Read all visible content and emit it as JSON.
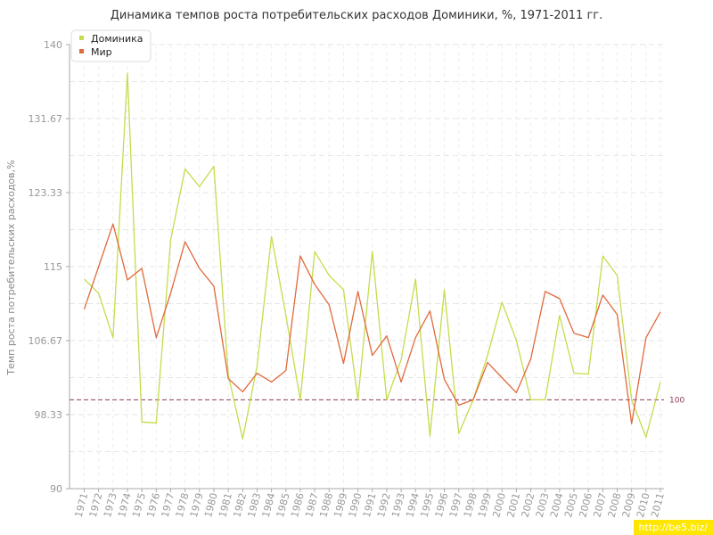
{
  "chart_data": {
    "type": "line",
    "title": "Динамика темпов роста потребительских расходов Доминики, %, 1971-2011 гг.",
    "ylabel": "Темп роста потребительских расходов,%",
    "xlabel": "",
    "ylim": [
      90,
      140
    ],
    "yticks": [
      "90",
      "98.33",
      "106.67",
      "115",
      "123.33",
      "131.67",
      "140"
    ],
    "x": [
      "1971",
      "1972",
      "1973",
      "1974",
      "1975",
      "1976",
      "1977",
      "1978",
      "1979",
      "1980",
      "1981",
      "1982",
      "1983",
      "1984",
      "1985",
      "1986",
      "1987",
      "1988",
      "1989",
      "1990",
      "1991",
      "1992",
      "1993",
      "1994",
      "1995",
      "1996",
      "1997",
      "1998",
      "1999",
      "2000",
      "2001",
      "2002",
      "2003",
      "2004",
      "2005",
      "2006",
      "2007",
      "2008",
      "2009",
      "2010",
      "2011"
    ],
    "grid": true,
    "legend_position": "top-left",
    "reference_line": {
      "value": 100,
      "label": "100",
      "color": "#8a3c55"
    },
    "series": [
      {
        "name": "Доминика",
        "color": "#c5dc4c",
        "values": [
          113.6,
          112.0,
          107.0,
          136.8,
          97.5,
          97.4,
          118.0,
          126.0,
          124.0,
          126.3,
          102.8,
          95.6,
          103.8,
          118.4,
          109.5,
          100.0,
          116.7,
          114.0,
          112.4,
          100.0,
          116.7,
          100.0,
          104.5,
          113.6,
          95.9,
          112.4,
          96.2,
          100.0,
          105.0,
          111.0,
          106.7,
          100.0,
          100.0,
          109.5,
          103.0,
          102.9,
          116.2,
          114.0,
          100.0,
          95.8,
          102.0
        ]
      },
      {
        "name": "Мир",
        "color": "#e06a3c",
        "values": [
          110.2,
          115.0,
          119.8,
          113.5,
          114.8,
          107.0,
          112.0,
          117.8,
          114.8,
          112.8,
          102.4,
          100.9,
          103.0,
          102.0,
          103.3,
          116.2,
          113.0,
          110.7,
          104.1,
          112.2,
          105.0,
          107.2,
          102.0,
          107.0,
          110.0,
          102.3,
          99.4,
          100.0,
          104.2,
          102.5,
          100.8,
          104.6,
          112.2,
          111.4,
          107.5,
          107.0,
          111.8,
          109.6,
          97.3,
          107.0,
          109.9
        ]
      }
    ]
  },
  "watermark": "http://be5.biz/"
}
